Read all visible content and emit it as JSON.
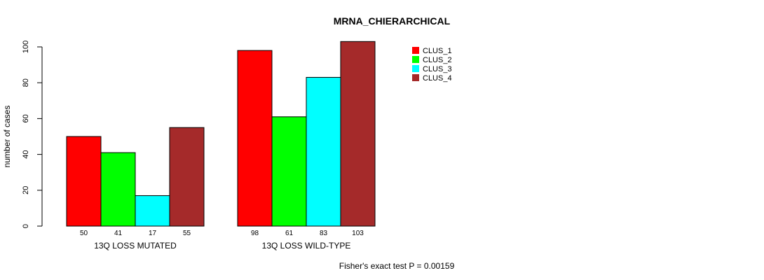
{
  "chart_data": {
    "type": "bar",
    "title": "MRNA_CHIERARCHICAL",
    "ylabel": "number of cases",
    "xlabel": "",
    "ylim": [
      0,
      100
    ],
    "yticks": [
      0,
      20,
      40,
      60,
      80,
      100
    ],
    "groups": [
      "13Q LOSS MUTATED",
      "13Q LOSS WILD-TYPE"
    ],
    "series": [
      {
        "name": "CLUS_1",
        "color": "#ff0000",
        "values": [
          50,
          98
        ]
      },
      {
        "name": "CLUS_2",
        "color": "#00ff00",
        "values": [
          41,
          61
        ]
      },
      {
        "name": "CLUS_3",
        "color": "#00ffff",
        "values": [
          17,
          83
        ]
      },
      {
        "name": "CLUS_4",
        "color": "#a52a2a",
        "values": [
          55,
          103
        ]
      }
    ],
    "legend_position": "top-right",
    "annotation": "Fisher's exact test P = 0.00159"
  }
}
